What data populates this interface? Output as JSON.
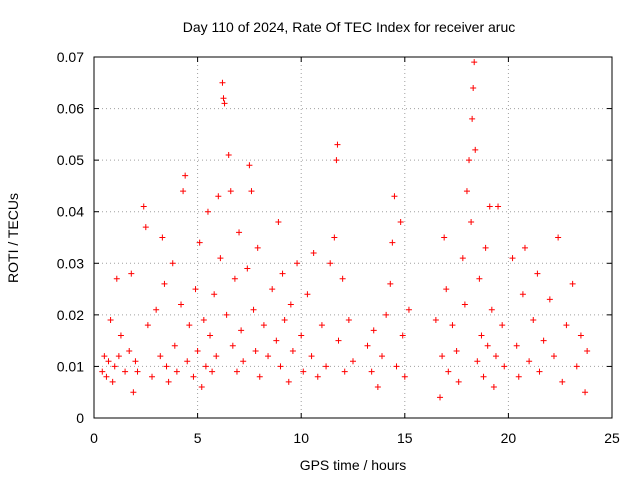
{
  "chart_data": {
    "type": "scatter",
    "title": "Day 110 of 2024, Rate Of TEC Index for receiver aruc",
    "xlabel": "GPS time / hours",
    "ylabel": "ROTI / TECUs",
    "xlim": [
      0,
      25
    ],
    "ylim": [
      0,
      0.07
    ],
    "x_ticks": [
      "0",
      "5",
      "10",
      "15",
      "20",
      "25"
    ],
    "y_ticks": [
      "0",
      "0.01",
      "0.02",
      "0.03",
      "0.04",
      "0.05",
      "0.06",
      "0.07"
    ],
    "grid": true,
    "marker": "plus",
    "color": "#ff0000",
    "series": [
      {
        "points": [
          [
            0.4,
            0.009
          ],
          [
            0.5,
            0.012
          ],
          [
            0.6,
            0.008
          ],
          [
            0.7,
            0.011
          ],
          [
            0.8,
            0.019
          ],
          [
            0.9,
            0.007
          ],
          [
            1.0,
            0.01
          ],
          [
            1.1,
            0.027
          ],
          [
            1.2,
            0.012
          ],
          [
            1.3,
            0.016
          ],
          [
            1.5,
            0.009
          ],
          [
            1.7,
            0.013
          ],
          [
            1.8,
            0.028
          ],
          [
            1.9,
            0.005
          ],
          [
            2.0,
            0.011
          ],
          [
            2.1,
            0.009
          ],
          [
            2.4,
            0.041
          ],
          [
            2.5,
            0.037
          ],
          [
            2.6,
            0.018
          ],
          [
            2.8,
            0.008
          ],
          [
            3.0,
            0.021
          ],
          [
            3.2,
            0.012
          ],
          [
            3.3,
            0.035
          ],
          [
            3.4,
            0.026
          ],
          [
            3.5,
            0.01
          ],
          [
            3.6,
            0.007
          ],
          [
            3.8,
            0.03
          ],
          [
            3.9,
            0.014
          ],
          [
            4.0,
            0.009
          ],
          [
            4.2,
            0.022
          ],
          [
            4.3,
            0.044
          ],
          [
            4.4,
            0.047
          ],
          [
            4.5,
            0.011
          ],
          [
            4.6,
            0.018
          ],
          [
            4.8,
            0.008
          ],
          [
            4.9,
            0.025
          ],
          [
            5.0,
            0.013
          ],
          [
            5.1,
            0.034
          ],
          [
            5.2,
            0.006
          ],
          [
            5.3,
            0.019
          ],
          [
            5.4,
            0.01
          ],
          [
            5.5,
            0.04
          ],
          [
            5.6,
            0.016
          ],
          [
            5.7,
            0.009
          ],
          [
            5.8,
            0.024
          ],
          [
            5.9,
            0.012
          ],
          [
            6.0,
            0.043
          ],
          [
            6.1,
            0.031
          ],
          [
            6.2,
            0.065
          ],
          [
            6.25,
            0.062
          ],
          [
            6.3,
            0.061
          ],
          [
            6.4,
            0.02
          ],
          [
            6.5,
            0.051
          ],
          [
            6.6,
            0.044
          ],
          [
            6.7,
            0.014
          ],
          [
            6.8,
            0.027
          ],
          [
            6.9,
            0.009
          ],
          [
            7.0,
            0.036
          ],
          [
            7.1,
            0.017
          ],
          [
            7.2,
            0.011
          ],
          [
            7.4,
            0.029
          ],
          [
            7.5,
            0.049
          ],
          [
            7.6,
            0.044
          ],
          [
            7.7,
            0.021
          ],
          [
            7.8,
            0.013
          ],
          [
            7.9,
            0.033
          ],
          [
            8.0,
            0.008
          ],
          [
            8.2,
            0.018
          ],
          [
            8.4,
            0.012
          ],
          [
            8.6,
            0.025
          ],
          [
            8.8,
            0.015
          ],
          [
            8.9,
            0.038
          ],
          [
            9.0,
            0.01
          ],
          [
            9.1,
            0.028
          ],
          [
            9.2,
            0.019
          ],
          [
            9.4,
            0.007
          ],
          [
            9.5,
            0.022
          ],
          [
            9.6,
            0.013
          ],
          [
            9.8,
            0.03
          ],
          [
            10.0,
            0.016
          ],
          [
            10.1,
            0.009
          ],
          [
            10.3,
            0.024
          ],
          [
            10.5,
            0.012
          ],
          [
            10.6,
            0.032
          ],
          [
            10.8,
            0.008
          ],
          [
            11.0,
            0.018
          ],
          [
            11.2,
            0.01
          ],
          [
            11.4,
            0.03
          ],
          [
            11.6,
            0.035
          ],
          [
            11.7,
            0.05
          ],
          [
            11.75,
            0.053
          ],
          [
            11.8,
            0.015
          ],
          [
            12.0,
            0.027
          ],
          [
            12.1,
            0.009
          ],
          [
            12.3,
            0.019
          ],
          [
            12.5,
            0.011
          ],
          [
            13.2,
            0.014
          ],
          [
            13.4,
            0.009
          ],
          [
            13.5,
            0.017
          ],
          [
            13.7,
            0.006
          ],
          [
            13.9,
            0.012
          ],
          [
            14.1,
            0.02
          ],
          [
            14.3,
            0.026
          ],
          [
            14.4,
            0.034
          ],
          [
            14.5,
            0.043
          ],
          [
            14.6,
            0.01
          ],
          [
            14.8,
            0.038
          ],
          [
            14.9,
            0.016
          ],
          [
            15.0,
            0.008
          ],
          [
            15.2,
            0.021
          ],
          [
            16.5,
            0.019
          ],
          [
            16.7,
            0.004
          ],
          [
            16.8,
            0.012
          ],
          [
            16.9,
            0.035
          ],
          [
            17.0,
            0.025
          ],
          [
            17.1,
            0.009
          ],
          [
            17.3,
            0.018
          ],
          [
            17.5,
            0.013
          ],
          [
            17.6,
            0.007
          ],
          [
            17.8,
            0.031
          ],
          [
            17.9,
            0.022
          ],
          [
            18.0,
            0.044
          ],
          [
            18.1,
            0.05
          ],
          [
            18.2,
            0.038
          ],
          [
            18.25,
            0.058
          ],
          [
            18.3,
            0.064
          ],
          [
            18.35,
            0.069
          ],
          [
            18.4,
            0.052
          ],
          [
            18.5,
            0.011
          ],
          [
            18.6,
            0.027
          ],
          [
            18.7,
            0.016
          ],
          [
            18.8,
            0.008
          ],
          [
            18.9,
            0.033
          ],
          [
            19.0,
            0.014
          ],
          [
            19.1,
            0.041
          ],
          [
            19.2,
            0.021
          ],
          [
            19.3,
            0.006
          ],
          [
            19.4,
            0.012
          ],
          [
            19.5,
            0.041
          ],
          [
            19.7,
            0.018
          ],
          [
            19.8,
            0.01
          ],
          [
            20.2,
            0.031
          ],
          [
            20.4,
            0.014
          ],
          [
            20.5,
            0.008
          ],
          [
            20.7,
            0.024
          ],
          [
            20.8,
            0.033
          ],
          [
            21.0,
            0.011
          ],
          [
            21.2,
            0.019
          ],
          [
            21.4,
            0.028
          ],
          [
            21.5,
            0.009
          ],
          [
            21.7,
            0.015
          ],
          [
            22.0,
            0.023
          ],
          [
            22.2,
            0.012
          ],
          [
            22.4,
            0.035
          ],
          [
            22.6,
            0.007
          ],
          [
            22.8,
            0.018
          ],
          [
            23.1,
            0.026
          ],
          [
            23.3,
            0.01
          ],
          [
            23.5,
            0.016
          ],
          [
            23.7,
            0.005
          ],
          [
            23.8,
            0.013
          ]
        ]
      }
    ]
  }
}
